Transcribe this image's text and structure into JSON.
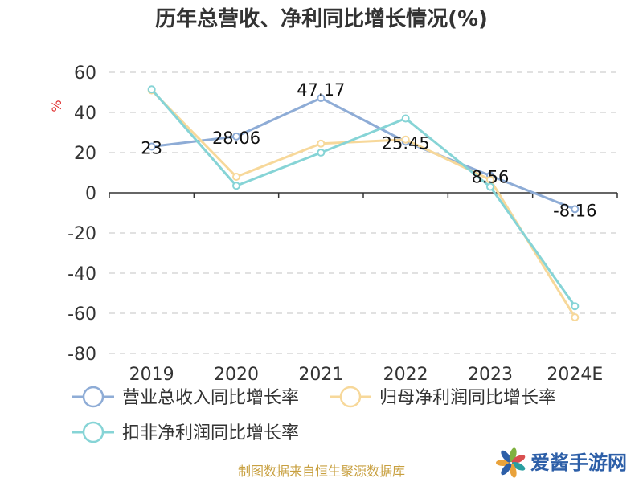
{
  "chart_data": {
    "type": "line",
    "title": "历年总营收、净利同比增长情况(%)",
    "ylabel": "%",
    "categories": [
      "2019",
      "2020",
      "2021",
      "2022",
      "2023",
      "2024E"
    ],
    "ylim": [
      -80,
      60
    ],
    "yticks": [
      "60",
      "40",
      "20",
      "0",
      "-20",
      "-40",
      "-60",
      "-80"
    ],
    "grid": true,
    "legend_position": "bottom",
    "series": [
      {
        "name": "营业总收入同比增长率",
        "color": "#8eacd6",
        "values": [
          23,
          28.06,
          47.17,
          25.45,
          8.56,
          -8.16
        ],
        "labels": [
          "23",
          "28.06",
          "47.17",
          "25.45",
          "8.56",
          "-8.16"
        ]
      },
      {
        "name": "归母净利润同比增长率",
        "color": "#f7d89a",
        "values": [
          51,
          8,
          24.5,
          26.5,
          6.5,
          -62
        ]
      },
      {
        "name": "扣非净利润同比增长率",
        "color": "#86d4d6",
        "values": [
          51.5,
          3.5,
          20,
          37,
          3,
          -56.5
        ]
      }
    ]
  },
  "footer": {
    "source": "制图数据来自恒生聚源数据库"
  },
  "watermark": {
    "text": "爱酱手游网"
  }
}
